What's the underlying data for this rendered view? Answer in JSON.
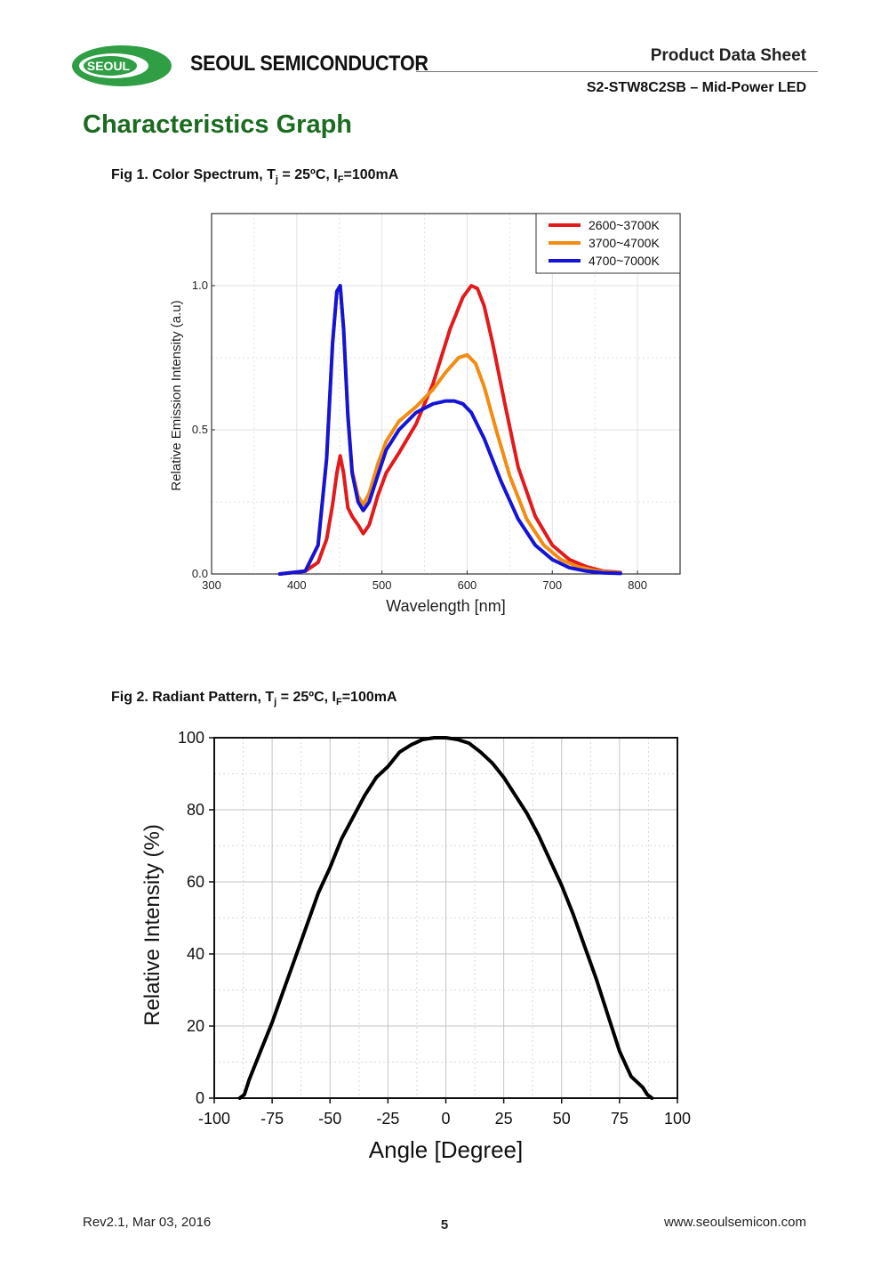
{
  "header": {
    "logo_text": "SEOUL",
    "brand": "SEOUL SEMICONDUCTOR",
    "doc_type": "Product Data Sheet",
    "doc_subtitle": "S2-STW8C2SB – Mid-Power LED"
  },
  "section_title": "Characteristics Graph",
  "fig1": {
    "caption_prefix": "Fig 1. Color Spectrum, T",
    "caption_tj_sub": "j",
    "caption_mid": " = 25ºC,  I",
    "caption_if_sub": "F",
    "caption_suffix": "=100mA"
  },
  "fig2": {
    "caption_prefix": "Fig 2. Radiant Pattern, T",
    "caption_tj_sub": "j",
    "caption_mid": " = 25ºC,  I",
    "caption_if_sub": "F",
    "caption_suffix": "=100mA"
  },
  "colors": {
    "green_title": "#1b6b20",
    "red": "#e31a1c",
    "orange": "#f28c12",
    "blue": "#1414d8"
  },
  "chart_data": [
    {
      "type": "line",
      "title": "Color Spectrum",
      "xlabel": "Wavelength [nm]",
      "ylabel": "Relative Emission Intensity (a.u)",
      "xlim": [
        300,
        850
      ],
      "ylim": [
        0,
        1.25
      ],
      "xticks": [
        300,
        400,
        500,
        600,
        700,
        800
      ],
      "xtick_labels": [
        "300",
        "400",
        "500",
        "600",
        "700",
        "800"
      ],
      "yticks": [
        0,
        0.5,
        1.0
      ],
      "ytick_labels": [
        "0.0",
        "0.5",
        "1.0"
      ],
      "legend_position": "top-right",
      "series": [
        {
          "name": "2600~3700K",
          "color": "#e31a1c",
          "x": [
            380,
            410,
            425,
            435,
            442,
            447,
            451,
            455,
            460,
            465,
            472,
            478,
            485,
            495,
            505,
            520,
            540,
            560,
            580,
            595,
            605,
            612,
            620,
            630,
            645,
            660,
            680,
            700,
            720,
            740,
            760,
            780
          ],
          "y": [
            0.0,
            0.01,
            0.04,
            0.12,
            0.24,
            0.35,
            0.41,
            0.35,
            0.23,
            0.2,
            0.17,
            0.14,
            0.17,
            0.27,
            0.35,
            0.42,
            0.52,
            0.66,
            0.85,
            0.96,
            1.0,
            0.99,
            0.93,
            0.8,
            0.58,
            0.37,
            0.2,
            0.1,
            0.05,
            0.025,
            0.01,
            0.005
          ]
        },
        {
          "name": "3700~4700K",
          "color": "#f28c12",
          "x": [
            380,
            410,
            425,
            435,
            442,
            447,
            451,
            455,
            460,
            465,
            472,
            478,
            485,
            495,
            505,
            520,
            540,
            560,
            575,
            590,
            600,
            610,
            620,
            635,
            650,
            670,
            690,
            710,
            730,
            750,
            770,
            780
          ],
          "y": [
            0.0,
            0.01,
            0.1,
            0.4,
            0.8,
            0.98,
            1.0,
            0.85,
            0.55,
            0.36,
            0.27,
            0.24,
            0.28,
            0.38,
            0.46,
            0.53,
            0.58,
            0.64,
            0.7,
            0.75,
            0.76,
            0.73,
            0.65,
            0.49,
            0.34,
            0.19,
            0.1,
            0.05,
            0.025,
            0.012,
            0.005,
            0.003
          ]
        },
        {
          "name": "4700~7000K",
          "color": "#1414d8",
          "x": [
            380,
            410,
            425,
            435,
            442,
            447,
            451,
            455,
            460,
            465,
            472,
            478,
            485,
            495,
            505,
            520,
            540,
            560,
            575,
            585,
            595,
            605,
            620,
            640,
            660,
            680,
            700,
            720,
            740,
            760,
            780
          ],
          "y": [
            0.0,
            0.01,
            0.1,
            0.4,
            0.8,
            0.98,
            1.0,
            0.85,
            0.55,
            0.35,
            0.25,
            0.22,
            0.25,
            0.34,
            0.43,
            0.5,
            0.56,
            0.59,
            0.6,
            0.6,
            0.59,
            0.56,
            0.47,
            0.32,
            0.19,
            0.1,
            0.05,
            0.022,
            0.01,
            0.004,
            0.002
          ]
        }
      ]
    },
    {
      "type": "line",
      "title": "Radiant Pattern",
      "xlabel": "Angle [Degree]",
      "ylabel": "Relative Intensity (%)",
      "xlim": [
        -100,
        100
      ],
      "ylim": [
        0,
        100
      ],
      "xticks": [
        -100,
        -75,
        -50,
        -25,
        0,
        25,
        50,
        75,
        100
      ],
      "xtick_labels": [
        "-100",
        "-75",
        "-50",
        "-25",
        "0",
        "25",
        "50",
        "75",
        "100"
      ],
      "yticks": [
        0,
        20,
        40,
        60,
        80,
        100
      ],
      "ytick_labels": [
        "0",
        "20",
        "40",
        "60",
        "80",
        "100"
      ],
      "series": [
        {
          "name": "Relative Intensity",
          "color": "#000000",
          "x": [
            -89,
            -87,
            -85,
            -80,
            -75,
            -70,
            -65,
            -60,
            -55,
            -50,
            -45,
            -40,
            -35,
            -30,
            -25,
            -20,
            -15,
            -10,
            -5,
            0,
            5,
            10,
            15,
            20,
            25,
            30,
            35,
            40,
            45,
            50,
            55,
            60,
            65,
            70,
            75,
            80,
            85,
            87,
            89
          ],
          "y": [
            0,
            1,
            5,
            13,
            21,
            30,
            39,
            48,
            57,
            64,
            72,
            78,
            84,
            89,
            92,
            96,
            98,
            99.5,
            100,
            100,
            99.5,
            98.5,
            96,
            93,
            89,
            84,
            79,
            73,
            66,
            59,
            51,
            42,
            33,
            23,
            13,
            6,
            3,
            1,
            0
          ]
        }
      ]
    }
  ],
  "footer": {
    "revision": "Rev2.1, Mar 03, 2016",
    "page_number": "5",
    "website": "www.seoulsemicon.com"
  }
}
